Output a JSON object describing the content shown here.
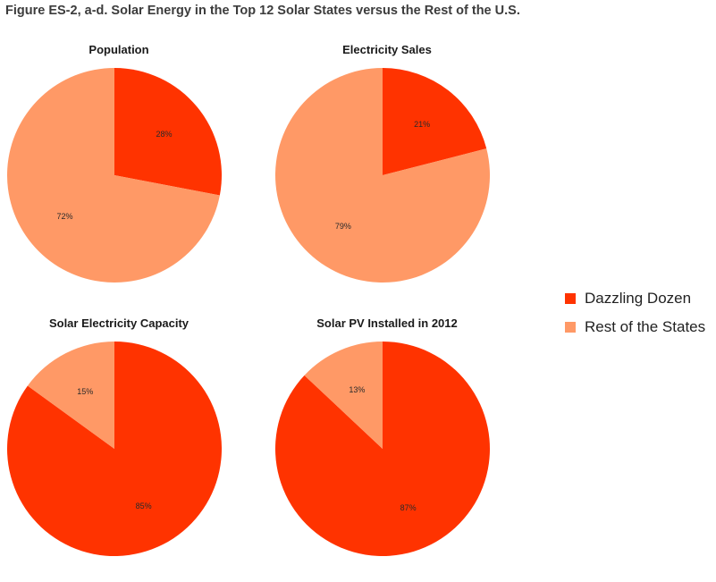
{
  "figure_title": "Figure ES-2, a-d. Solar Energy in the Top 12 Solar States versus the Rest of the U.S.",
  "legend": [
    {
      "label": "Dazzling Dozen",
      "color": "#ff3300"
    },
    {
      "label": "Rest of the States",
      "color": "#ff9966"
    }
  ],
  "chart_data": [
    {
      "type": "pie",
      "title": "Population",
      "categories": [
        "Dazzling Dozen",
        "Rest of the States"
      ],
      "values": [
        28,
        72
      ],
      "labels": [
        "28%",
        "72%"
      ]
    },
    {
      "type": "pie",
      "title": "Electricity Sales",
      "categories": [
        "Dazzling Dozen",
        "Rest of the States"
      ],
      "values": [
        21,
        79
      ],
      "labels": [
        "21%",
        "79%"
      ]
    },
    {
      "type": "pie",
      "title": "Solar Electricity Capacity",
      "categories": [
        "Dazzling Dozen",
        "Rest of the States"
      ],
      "values": [
        85,
        15
      ],
      "labels": [
        "85%",
        "15%"
      ]
    },
    {
      "type": "pie",
      "title": "Solar PV Installed in 2012",
      "categories": [
        "Dazzling Dozen",
        "Rest of the States"
      ],
      "values": [
        87,
        13
      ],
      "labels": [
        "87%",
        "13%"
      ]
    }
  ]
}
